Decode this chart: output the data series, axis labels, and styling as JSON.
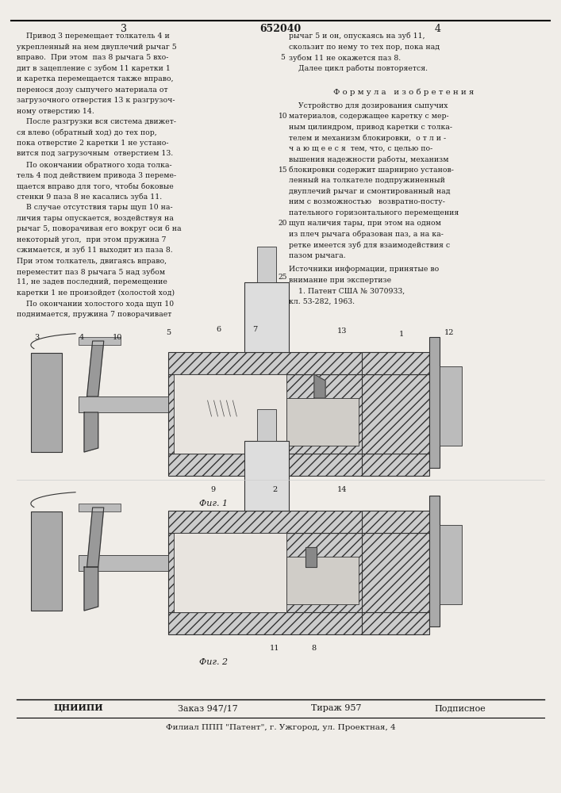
{
  "page_width": 7.07,
  "page_height": 10.0,
  "bg_color": "#f0ede8",
  "patent_number": "652040",
  "page_left": "3",
  "page_right": "4",
  "text_color": "#1a1a1a",
  "formula_title": "Ф о р м у л а   и з о б р е т е н и я",
  "left_text": [
    "    Привод 3 перемещает толкатель 4 и",
    "укрепленный на нем двуплечий рычаг 5",
    "вправо.  При этом  паз 8 рычага 5 вхо-",
    "дит в зацепление с зубом 11 каретки 1",
    "и каретка перемещается также вправо,",
    "перенося дозу сыпучего материала от",
    "загрузочного отверстия 13 к разгрузоч-",
    "ному отверстию 14.",
    "    После разгрузки вся система движет-",
    "ся влево (обратный ход) до тех пор,",
    "пока отверстие 2 каретки 1 не устано-",
    "вится под загрузочным  отверстием 13.",
    "    По окончании обратного хода толка-",
    "тель 4 под действием привода 3 переме-",
    "щается вправо для того, чтобы боковые",
    "стенки 9 паза 8 не касались зуба 11.",
    "    В случае отсутствия тары щуп 10 на-",
    "личия тары опускается, воздействуя на",
    "рычаг 5, поворачивая его вокруг оси 6 на",
    "некоторый угол,  при этом пружина 7",
    "сжимается, и зуб 11 выходит из паза 8.",
    "При этом толкатель, двигаясь вправо,",
    "переместит паз 8 рычага 5 над зубом",
    "11, не задев последний, перемещение",
    "каретки 1 не произойдет (холостой ход)",
    "    По окончании холостого хода щуп 10",
    "поднимается, пружина 7 поворачивает"
  ],
  "right_text_part1": [
    "рычаг 5 и он, опускаясь на зуб 11,",
    "скользит по нему то тех пор, пока над",
    "зубом 11 не окажется паз 8.",
    "    Далее цикл работы повторяется."
  ],
  "formula_text": [
    "    Устройство для дозирования сыпучих",
    "материалов, содержащее каретку с мер-",
    "ным цилиндром, привод каретки с толка-",
    "телем и механизм блокировки,  о т л и -",
    "ч а ю щ е е с я  тем, что, с целью по-",
    "вышения надежности работы, механизм",
    "блокировки содержит шарнирно установ-",
    "ленный на толкателе подпружиненный",
    "двуплечий рычаг и смонтированный над",
    "ним с возможностью   возвратно-посту-",
    "пательного горизонтального перемещения",
    "щуп наличия тары, при этом на одном",
    "из плеч рычага образован паз, а на ка-",
    "ретке имеется зуб для взаимодействия с",
    "пазом рычага."
  ],
  "sources_title": "Источники информации, принятые во",
  "sources_text": [
    "внимание при экспертизе",
    "    1. Патент США № 3070933,",
    "кл. 53-282, 1963."
  ],
  "bottom_bar_цниипи": "ЦНИИПИ",
  "bottom_bar_zakaz": "Заказ 947/17",
  "bottom_bar_tirazh": "Тираж 957",
  "bottom_bar_podpisnoe": "Подписное",
  "bottom_line": "Филиал ППП \"Патент\", г. Ужгород, ул. Проектная, 4",
  "fig1_caption": "Фиг. 1",
  "fig2_caption": "Фиг. 2"
}
